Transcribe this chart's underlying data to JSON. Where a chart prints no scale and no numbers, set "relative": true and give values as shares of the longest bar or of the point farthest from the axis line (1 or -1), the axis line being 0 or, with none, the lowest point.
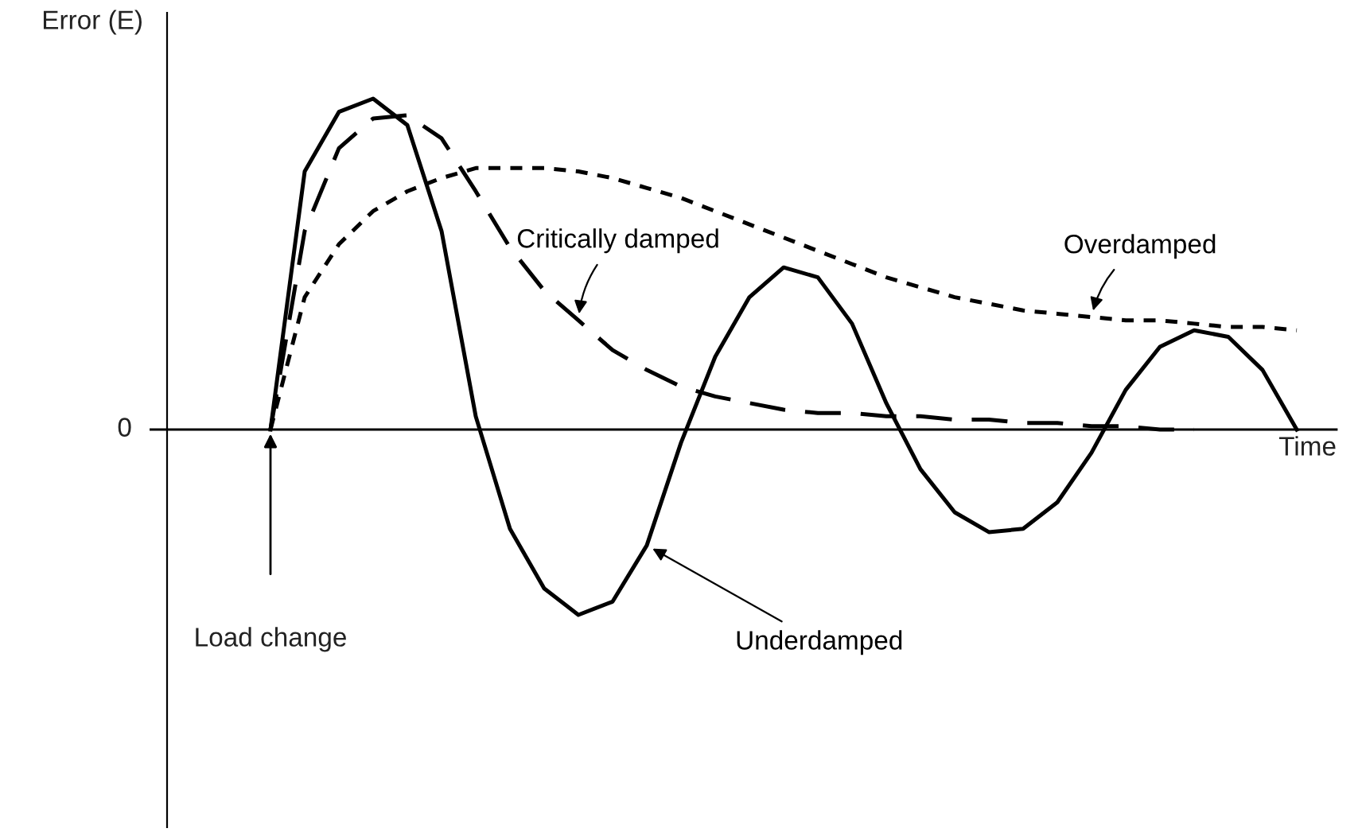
{
  "chart_data": {
    "type": "line",
    "relative": true,
    "xlabel": "Time",
    "ylabel": "Error (E)",
    "categories": [
      null,
      null,
      null,
      null,
      null,
      null,
      null,
      null,
      null,
      null,
      null,
      null,
      null,
      null,
      null,
      null,
      null,
      null,
      null,
      null,
      null,
      null,
      null,
      null,
      null,
      null,
      null,
      null,
      null,
      null,
      null
    ],
    "series": [
      {
        "name": "Underdamped",
        "color": "#000000",
        "line_style": "solid",
        "values": [
          0,
          0.78,
          0.96,
          1.0,
          0.92,
          0.6,
          0.04,
          -0.3,
          -0.48,
          -0.56,
          -0.52,
          -0.35,
          -0.04,
          0.22,
          0.4,
          0.49,
          0.46,
          0.32,
          0.08,
          -0.12,
          -0.25,
          -0.31,
          -0.3,
          -0.22,
          -0.07,
          0.12,
          0.25,
          0.3,
          0.28,
          0.18,
          0
        ]
      },
      {
        "name": "Critically damped",
        "color": "#000000",
        "line_style": "dashed",
        "values": [
          0,
          0.6,
          0.85,
          0.94,
          0.95,
          0.88,
          0.72,
          0.55,
          0.42,
          0.33,
          0.24,
          0.18,
          0.13,
          0.1,
          0.08,
          0.06,
          0.05,
          0.05,
          0.04,
          0.04,
          0.03,
          0.03,
          0.02,
          0.02,
          0.01,
          0.01,
          0,
          0,
          null,
          null,
          null
        ]
      },
      {
        "name": "Overdamped",
        "color": "#000000",
        "line_style": "dotted",
        "values": [
          0,
          0.4,
          0.56,
          0.66,
          0.72,
          0.76,
          0.79,
          0.79,
          0.79,
          0.78,
          0.76,
          0.73,
          0.7,
          0.66,
          0.62,
          0.58,
          0.54,
          0.5,
          0.46,
          0.43,
          0.4,
          0.38,
          0.36,
          0.35,
          0.34,
          0.33,
          0.33,
          0.32,
          0.31,
          0.31,
          0.3
        ]
      }
    ],
    "ref_lines": [
      {
        "axis": "y",
        "value": 0,
        "label": "0"
      }
    ],
    "annotations": [
      "Load change"
    ],
    "legend": false,
    "grid": false
  }
}
